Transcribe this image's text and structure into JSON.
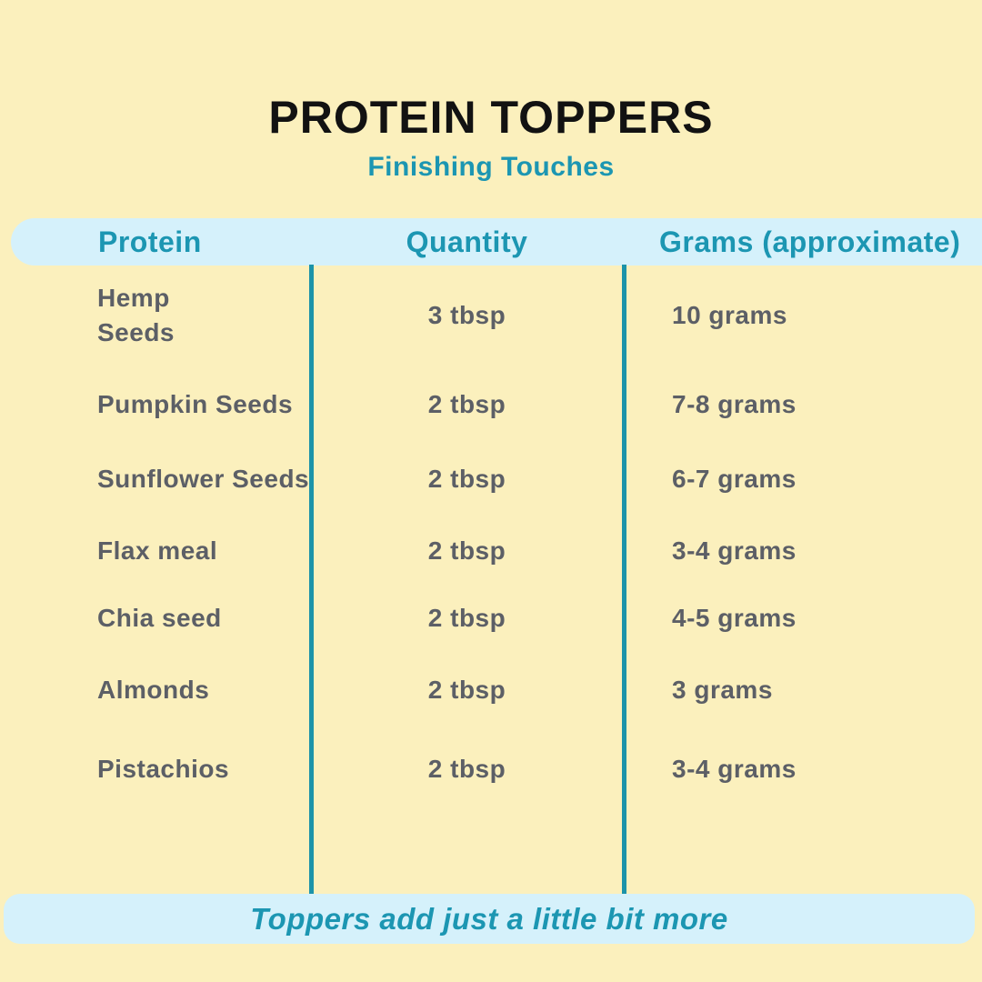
{
  "chart_data": {
    "type": "table",
    "title": "PROTEIN TOPPERS",
    "subtitle": "Finishing Touches",
    "columns": [
      "Protein",
      "Quantity",
      "Grams (approximate)"
    ],
    "rows": [
      [
        "Hemp Seeds",
        "3 tbsp",
        "10 grams"
      ],
      [
        "Pumpkin Seeds",
        "2 tbsp",
        "7-8 grams"
      ],
      [
        "Sunflower Seeds",
        "2 tbsp",
        "6-7 grams"
      ],
      [
        "Flax meal",
        "2 tbsp",
        "3-4 grams"
      ],
      [
        "Chia seed",
        "2 tbsp",
        "4-5 grams"
      ],
      [
        "Almonds",
        "2 tbsp",
        "3 grams"
      ],
      [
        "Pistachios",
        "2 tbsp",
        "3-4 grams"
      ]
    ],
    "footer": "Toppers add just a little bit more",
    "layout_hints": {
      "grid": "two vertical teal column dividers",
      "header_position": "top band",
      "footer_position": "bottom band"
    }
  },
  "colors": {
    "background_yellow": "#FBF0BD",
    "band_blue": "#D5F1FB",
    "accent_teal_text": "#1C96B2",
    "divider_teal": "#1C93A9",
    "body_text_gray": "#5C5F66",
    "title_black": "#121212"
  }
}
